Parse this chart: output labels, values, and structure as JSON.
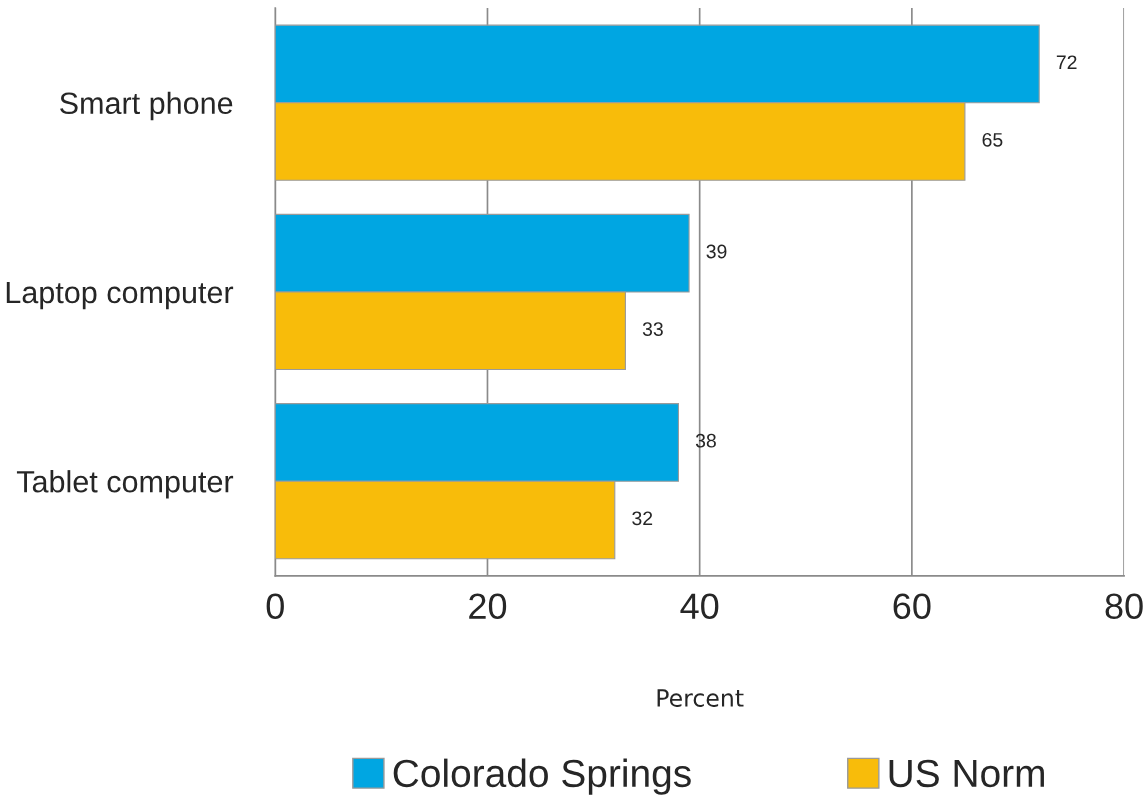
{
  "chart_data": {
    "type": "bar",
    "orientation": "horizontal",
    "xlabel": "Percent",
    "categories": [
      "Smart phone",
      "Laptop computer",
      "Tablet computer"
    ],
    "series": [
      {
        "name": "Colorado Springs",
        "color": "#00a6e2",
        "values": [
          72,
          39,
          38
        ]
      },
      {
        "name": "US Norm",
        "color": "#f8bc0a",
        "values": [
          65,
          33,
          32
        ]
      }
    ],
    "xlim": [
      0,
      80
    ],
    "xticks": [
      0,
      20,
      40,
      60,
      80
    ],
    "grid": "x",
    "legend": "bottom",
    "data_labels": true
  }
}
